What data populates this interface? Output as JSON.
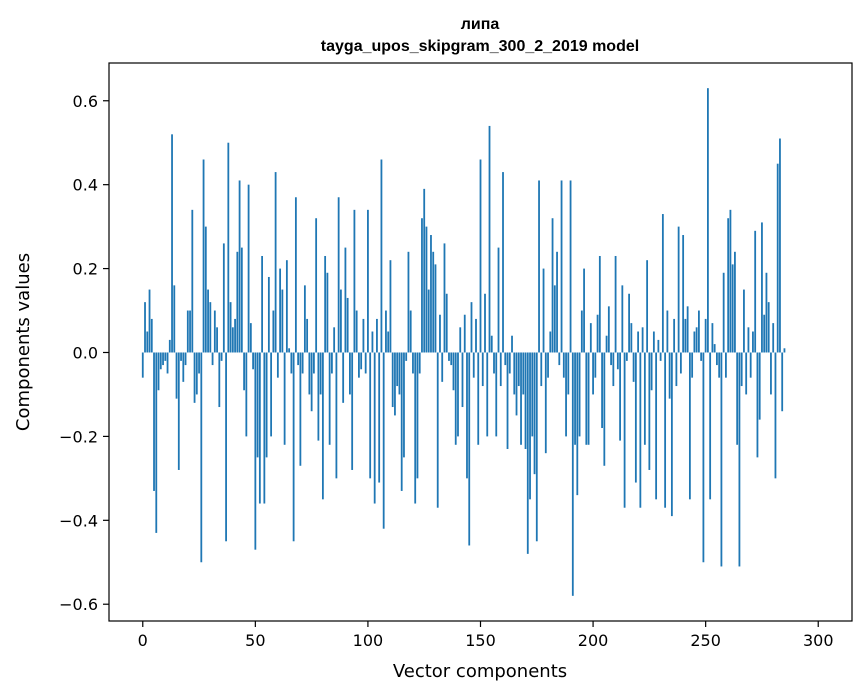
{
  "chart_data": {
    "type": "bar",
    "title": "липа",
    "subtitle": "tayga_upos_skipgram_300_2_2019 model",
    "xlabel": "Vector components",
    "ylabel": "Components values",
    "xlim": [
      -15,
      315
    ],
    "ylim": [
      -0.64,
      0.69
    ],
    "xticks": [
      0,
      50,
      100,
      150,
      200,
      250,
      300
    ],
    "yticks": [
      -0.6,
      -0.4,
      -0.2,
      0.0,
      0.2,
      0.4,
      0.6
    ],
    "ytick_labels": [
      "−0.6",
      "−0.4",
      "−0.2",
      "0.0",
      "0.2",
      "0.4",
      "0.6"
    ],
    "bar_color": "#1f77b4",
    "grid": false,
    "values": [
      -0.06,
      0.12,
      0.05,
      0.15,
      0.08,
      -0.33,
      -0.43,
      -0.09,
      -0.04,
      -0.03,
      -0.02,
      -0.05,
      0.03,
      0.52,
      0.16,
      -0.11,
      -0.28,
      -0.02,
      -0.07,
      -0.03,
      0.1,
      0.1,
      0.34,
      -0.12,
      -0.1,
      -0.05,
      -0.5,
      0.46,
      0.3,
      0.15,
      0.12,
      -0.03,
      0.1,
      0.06,
      -0.13,
      -0.02,
      0.26,
      -0.45,
      0.5,
      0.12,
      0.06,
      0.08,
      0.24,
      0.41,
      0.25,
      -0.09,
      -0.2,
      0.4,
      0.07,
      -0.04,
      -0.47,
      -0.25,
      -0.36,
      0.23,
      -0.36,
      -0.25,
      0.18,
      -0.2,
      0.1,
      0.43,
      -0.06,
      0.2,
      0.15,
      -0.22,
      0.22,
      0.01,
      -0.05,
      -0.45,
      0.37,
      -0.03,
      -0.27,
      -0.05,
      0.16,
      0.08,
      -0.1,
      -0.14,
      -0.05,
      0.32,
      -0.21,
      -0.1,
      -0.35,
      0.23,
      0.19,
      -0.22,
      -0.05,
      0.06,
      -0.3,
      0.37,
      0.15,
      -0.12,
      0.25,
      0.13,
      -0.1,
      -0.28,
      0.34,
      0.1,
      -0.06,
      -0.04,
      0.08,
      -0.05,
      0.34,
      -0.3,
      0.05,
      -0.36,
      0.08,
      -0.31,
      0.46,
      -0.42,
      0.1,
      0.05,
      0.22,
      -0.13,
      -0.15,
      -0.08,
      -0.1,
      -0.33,
      -0.25,
      -0.02,
      0.24,
      0.1,
      -0.05,
      -0.36,
      -0.3,
      -0.05,
      0.32,
      0.39,
      0.3,
      0.15,
      0.28,
      0.24,
      0.21,
      -0.37,
      0.09,
      -0.07,
      0.26,
      0.14,
      -0.02,
      -0.03,
      -0.09,
      -0.22,
      -0.2,
      0.06,
      -0.13,
      0.09,
      -0.3,
      -0.46,
      0.12,
      -0.06,
      0.08,
      -0.22,
      0.46,
      -0.08,
      0.14,
      -0.2,
      0.54,
      0.04,
      -0.05,
      -0.2,
      0.25,
      -0.08,
      0.43,
      -0.03,
      -0.23,
      -0.05,
      0.04,
      -0.1,
      -0.15,
      -0.08,
      -0.22,
      -0.1,
      -0.23,
      -0.48,
      -0.35,
      -0.2,
      -0.29,
      -0.45,
      0.41,
      -0.08,
      0.2,
      -0.24,
      -0.06,
      0.05,
      0.32,
      0.16,
      0.24,
      -0.03,
      0.41,
      -0.06,
      -0.2,
      -0.1,
      0.41,
      -0.58,
      -0.22,
      -0.34,
      -0.2,
      0.1,
      0.2,
      -0.22,
      -0.22,
      0.07,
      -0.1,
      -0.06,
      0.09,
      0.23,
      -0.18,
      -0.27,
      0.04,
      0.11,
      -0.03,
      -0.08,
      0.23,
      -0.04,
      -0.21,
      0.16,
      -0.37,
      -0.02,
      0.14,
      0.07,
      -0.07,
      -0.31,
      0.05,
      -0.37,
      0.06,
      -0.22,
      0.22,
      -0.28,
      -0.09,
      0.05,
      -0.35,
      0.03,
      -0.02,
      0.33,
      -0.37,
      0.1,
      -0.11,
      -0.39,
      0.08,
      -0.08,
      0.3,
      -0.05,
      0.28,
      0.08,
      0.11,
      -0.35,
      -0.06,
      0.05,
      0.06,
      0.1,
      -0.02,
      -0.5,
      0.08,
      0.63,
      -0.35,
      0.07,
      0.02,
      -0.03,
      -0.06,
      -0.51,
      0.19,
      -0.06,
      0.32,
      0.34,
      0.21,
      0.24,
      -0.22,
      -0.51,
      -0.08,
      0.15,
      -0.1,
      0.06,
      -0.06,
      0.05,
      0.29,
      -0.25,
      -0.16,
      0.31,
      0.09,
      0.19,
      0.12,
      -0.1,
      0.07,
      -0.3,
      0.45,
      0.51,
      -0.14,
      0.01,
      0.0,
      0.0,
      0.0,
      0.0
    ]
  }
}
